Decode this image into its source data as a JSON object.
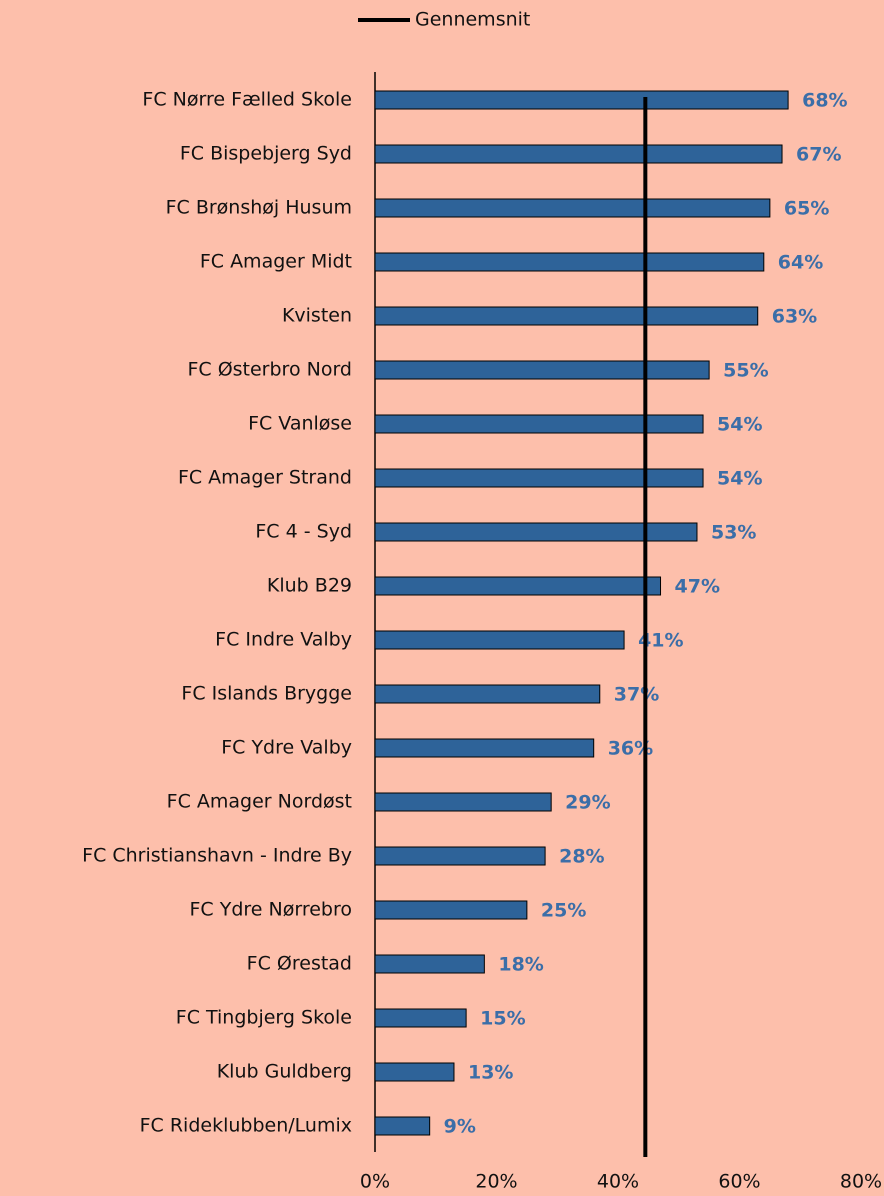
{
  "chart_data": {
    "type": "hbar",
    "categories": [
      "FC Nørre Fælled Skole",
      "FC Bispebjerg Syd",
      "FC Brønshøj Husum",
      "FC Amager Midt",
      "Kvisten",
      "FC Østerbro Nord",
      "FC Vanløse",
      "FC Amager Strand",
      "FC 4 - Syd",
      "Klub B29",
      "FC Indre Valby",
      "FC Islands Brygge",
      "FC Ydre Valby",
      "FC Amager Nordøst",
      "FC Christianshavn - Indre By",
      "FC Ydre Nørrebro",
      "FC Ørestad",
      "FC Tingbjerg Skole",
      "Klub Guldberg",
      "FC Rideklubben/Lumix"
    ],
    "values": [
      68,
      67,
      65,
      64,
      63,
      55,
      54,
      54,
      53,
      47,
      41,
      37,
      36,
      29,
      28,
      25,
      18,
      15,
      13,
      9
    ],
    "value_labels": [
      "68%",
      "67%",
      "65%",
      "64%",
      "63%",
      "55%",
      "54%",
      "54%",
      "53%",
      "47%",
      "41%",
      "37%",
      "36%",
      "29%",
      "28%",
      "25%",
      "18%",
      "15%",
      "13%",
      "9%"
    ],
    "color": "#2e6399",
    "label_color": "#3b6ea8",
    "reference_line": {
      "name": "Gennemsnit",
      "value": 44.5,
      "color": "#000000"
    },
    "xlim": [
      0,
      80
    ],
    "xticks": [
      {
        "value": 0,
        "label": "0%"
      },
      {
        "value": 20,
        "label": "20%"
      },
      {
        "value": 40,
        "label": "40%"
      },
      {
        "value": 60,
        "label": "60%"
      },
      {
        "value": 80,
        "label": "80%"
      }
    ]
  }
}
